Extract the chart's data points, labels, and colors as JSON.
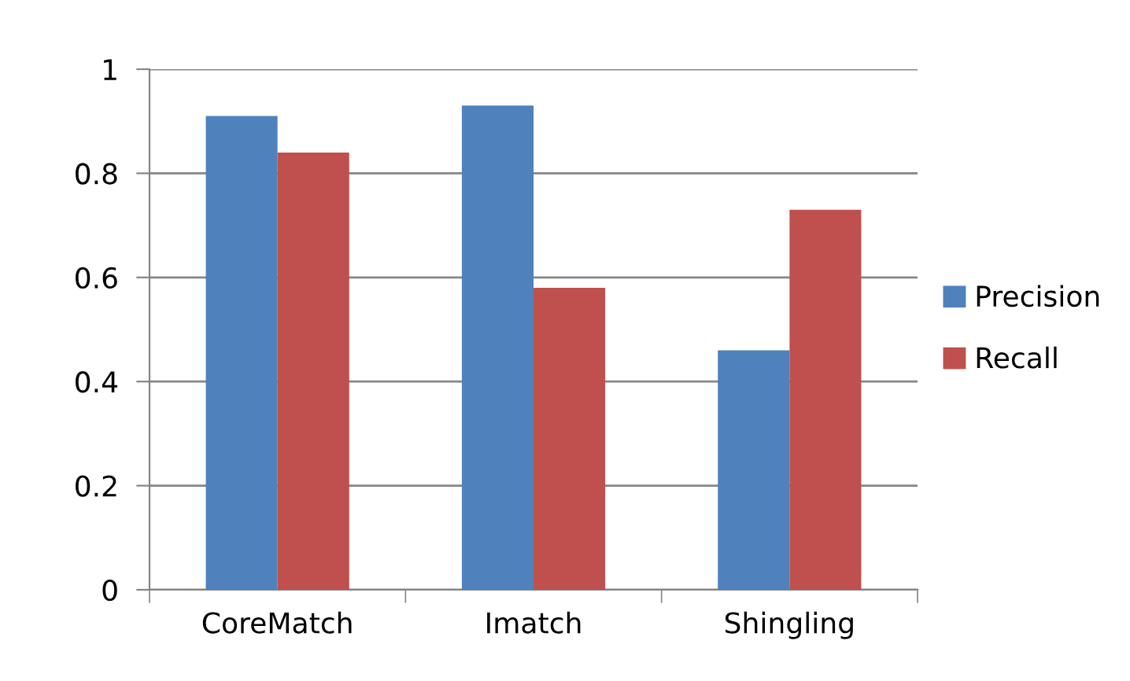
{
  "chart_data": {
    "type": "bar",
    "categories": [
      "CoreMatch",
      "Imatch",
      "Shingling"
    ],
    "series": [
      {
        "name": "Precision",
        "color": "#4f81bd",
        "values": [
          0.91,
          0.93,
          0.46
        ]
      },
      {
        "name": "Recall",
        "color": "#c0504d",
        "values": [
          0.84,
          0.58,
          0.73
        ]
      }
    ],
    "ylim": [
      0,
      1
    ],
    "yticks": [
      0,
      0.2,
      0.4,
      0.6,
      0.8,
      1
    ],
    "grid": "y",
    "legend": "right"
  }
}
